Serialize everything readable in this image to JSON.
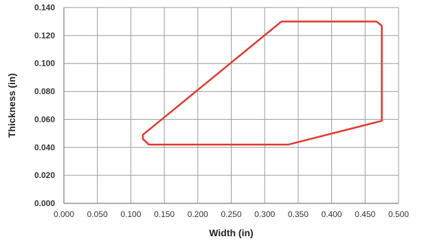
{
  "chart_data": {
    "type": "line",
    "title": "",
    "xlabel": "Width (in)",
    "ylabel": "Thickness (in)",
    "xlim": [
      0,
      0.5
    ],
    "ylim": [
      0,
      0.14
    ],
    "x_ticks": [
      0,
      0.05,
      0.1,
      0.15,
      0.2,
      0.25,
      0.3,
      0.35,
      0.4,
      0.45,
      0.5
    ],
    "x_tick_labels": [
      "0.000",
      "0.050",
      "0.100",
      "0.150",
      "0.200",
      "0.250",
      "0.300",
      "0.350",
      "0.400",
      "0.450",
      "0.500"
    ],
    "y_ticks": [
      0,
      0.02,
      0.04,
      0.06,
      0.08,
      0.1,
      0.12,
      0.14
    ],
    "y_tick_labels": [
      "0.000",
      "0.020",
      "0.040",
      "0.060",
      "0.080",
      "0.100",
      "0.120",
      "0.140"
    ],
    "grid": true,
    "series": [
      {
        "color": "#e03c31",
        "closed": true,
        "points": [
          {
            "x": 0.118,
            "y": 0.049
          },
          {
            "x": 0.325,
            "y": 0.13
          },
          {
            "x": 0.467,
            "y": 0.13
          },
          {
            "x": 0.475,
            "y": 0.127
          },
          {
            "x": 0.475,
            "y": 0.059
          },
          {
            "x": 0.335,
            "y": 0.042
          },
          {
            "x": 0.127,
            "y": 0.042
          },
          {
            "x": 0.118,
            "y": 0.046
          }
        ]
      }
    ]
  },
  "colors": {
    "grid": "#9a9a9a",
    "axis": "#7a7a7a",
    "text": "#333333",
    "series": "#e03c31"
  }
}
